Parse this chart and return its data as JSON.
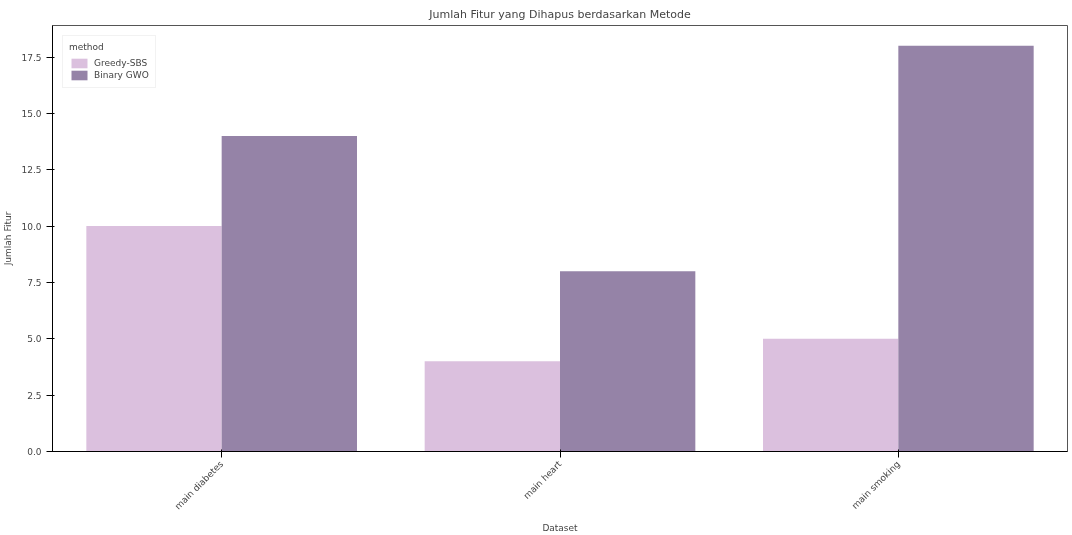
{
  "chart_data": {
    "type": "bar",
    "title": "Jumlah Fitur yang Dihapus berdasarkan Metode",
    "xlabel": "Dataset",
    "ylabel": "Jumlah Fitur",
    "legend_title": "method",
    "categories": [
      "main diabetes",
      "main heart",
      "main smoking"
    ],
    "series": [
      {
        "name": "Greedy-SBS",
        "color": "#dbc0de",
        "values": [
          10,
          4,
          5
        ]
      },
      {
        "name": "Binary GWO",
        "color": "#9583a7",
        "values": [
          14,
          8,
          18
        ]
      }
    ],
    "ylim": [
      0,
      18.9
    ],
    "yticks": [
      {
        "value": 0,
        "label": "0.0"
      },
      {
        "value": 2.5,
        "label": "2.5"
      },
      {
        "value": 5,
        "label": "5.0"
      },
      {
        "value": 7.5,
        "label": "7.5"
      },
      {
        "value": 10,
        "label": "10.0"
      },
      {
        "value": 12.5,
        "label": "12.5"
      },
      {
        "value": 15,
        "label": "15.0"
      },
      {
        "value": 17.5,
        "label": "17.5"
      }
    ],
    "grid": false,
    "legend": "top left"
  }
}
